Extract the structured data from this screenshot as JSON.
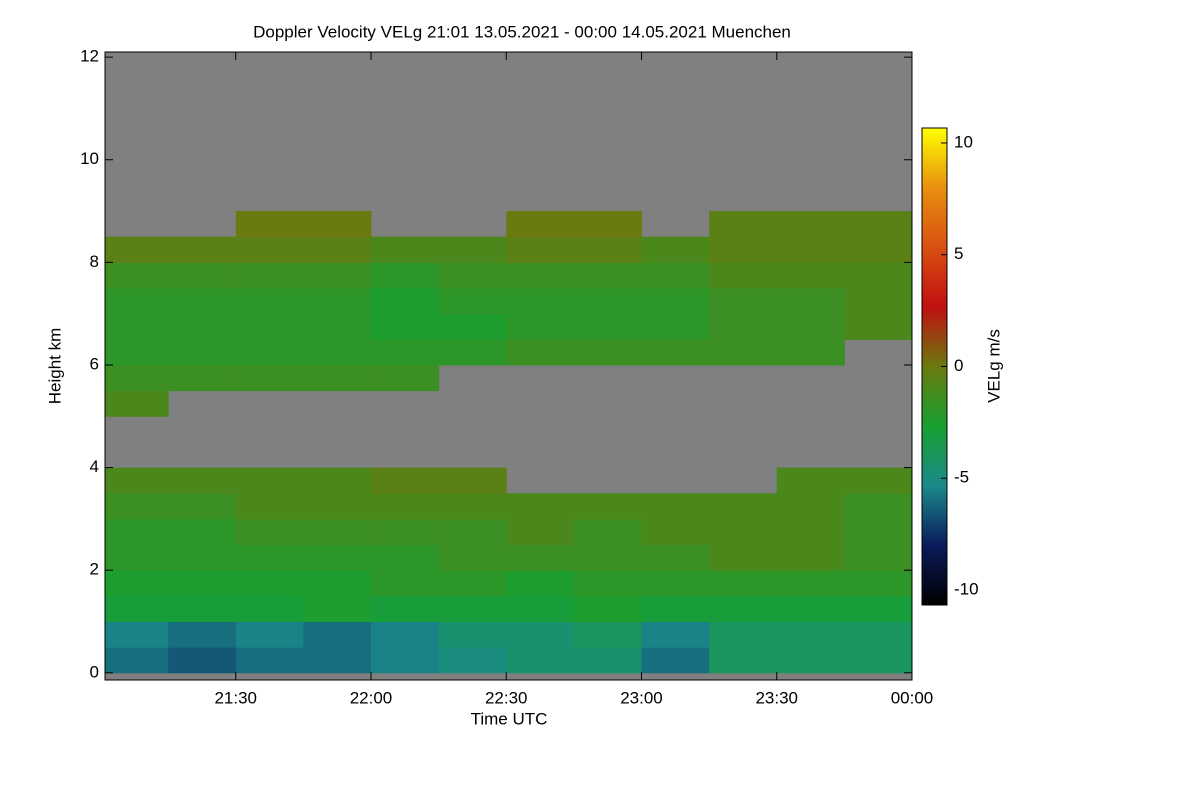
{
  "chart_data": {
    "type": "heatmap",
    "title": "Doppler Velocity VELg   21:01 13.05.2021 - 00:00 14.05.2021 Muenchen",
    "x_label": "Time UTC",
    "y_label": "Height km",
    "colorbar_label": "VELg m/s",
    "x": [
      21.0,
      21.25,
      21.5,
      21.75,
      22.0,
      22.25,
      22.5,
      22.75,
      23.0,
      23.25,
      23.5,
      23.75
    ],
    "y": [
      0,
      0.5,
      1,
      1.5,
      2,
      2.5,
      3,
      3.5,
      4,
      4.5,
      5,
      5.5,
      6,
      6.5,
      7,
      7.5,
      8,
      8.5,
      9,
      9.5,
      10,
      10.5,
      11,
      11.5
    ],
    "values": [
      [
        -6,
        -6.5,
        -6,
        -6,
        -5.5,
        -5,
        -4.5,
        -4.5,
        -6,
        -4,
        -4,
        -4
      ],
      [
        -5.5,
        -6,
        -5.5,
        -6,
        -5.5,
        -4.5,
        -4.5,
        -4,
        -5.5,
        -4,
        -4,
        -4
      ],
      [
        -3,
        -3,
        -3,
        -2.5,
        -3,
        -3,
        -3,
        -2.5,
        -3,
        -3,
        -3,
        -3
      ],
      [
        -2.5,
        -2.5,
        -2.5,
        -2.5,
        -2,
        -2,
        -2.5,
        -2,
        -2,
        -2,
        -2,
        -2
      ],
      [
        -2,
        -2,
        -2,
        -2,
        -2,
        -1.5,
        -1.5,
        -1.5,
        -1.5,
        -1,
        -1,
        -1.5
      ],
      [
        -2,
        -2,
        -1.5,
        -1.5,
        -1.5,
        -1.5,
        -1,
        -1.5,
        -1,
        -1,
        -1,
        -1.5
      ],
      [
        -1.5,
        -1.5,
        -1,
        -1,
        -1,
        -1,
        -1,
        -1,
        -1,
        -1,
        -1,
        -1.5
      ],
      [
        -1,
        -1,
        -1,
        -1,
        -0.5,
        -0.5,
        null,
        null,
        null,
        null,
        -1,
        -1
      ],
      [
        null,
        null,
        null,
        null,
        null,
        null,
        null,
        null,
        null,
        null,
        null,
        null
      ],
      [
        null,
        null,
        null,
        null,
        null,
        null,
        null,
        null,
        null,
        null,
        null,
        null
      ],
      [
        -1,
        null,
        null,
        null,
        null,
        null,
        null,
        null,
        null,
        null,
        null,
        null
      ],
      [
        -1.5,
        -1.5,
        -1.5,
        -1.5,
        -1.5,
        null,
        null,
        null,
        null,
        null,
        null,
        null
      ],
      [
        -2,
        -2,
        -2,
        -2,
        -2,
        -2,
        -1.5,
        -1.5,
        -1.5,
        -1.5,
        -1.5,
        null
      ],
      [
        -2,
        -2,
        -2,
        -2,
        -2.5,
        -2.5,
        -2,
        -2,
        -2,
        -1.5,
        -1.5,
        -1
      ],
      [
        -2,
        -2,
        -2,
        -2,
        -2.5,
        -2,
        -2,
        -2,
        -2,
        -1.5,
        -1.5,
        -1
      ],
      [
        -1.5,
        -1.5,
        -1.5,
        -1.5,
        -2,
        -1.5,
        -1.5,
        -1.5,
        -1.5,
        -1,
        -1,
        -1
      ],
      [
        -0.5,
        -0.5,
        -0.5,
        -0.5,
        -1,
        -1,
        -0.5,
        -0.5,
        -1,
        -0.5,
        -0.5,
        -0.5
      ],
      [
        null,
        null,
        0,
        0,
        null,
        null,
        0,
        0,
        null,
        -0.5,
        -0.5,
        -0.5
      ],
      [
        null,
        null,
        null,
        null,
        null,
        null,
        null,
        null,
        null,
        null,
        null,
        null
      ],
      [
        null,
        null,
        null,
        null,
        null,
        null,
        null,
        null,
        null,
        null,
        null,
        null
      ],
      [
        null,
        null,
        null,
        null,
        null,
        null,
        null,
        null,
        null,
        null,
        null,
        null
      ],
      [
        null,
        null,
        null,
        null,
        null,
        null,
        null,
        null,
        null,
        null,
        null,
        null
      ],
      [
        null,
        null,
        null,
        null,
        null,
        null,
        null,
        null,
        null,
        null,
        null,
        null
      ],
      [
        null,
        null,
        null,
        null,
        null,
        null,
        null,
        null,
        null,
        null,
        null,
        null
      ]
    ],
    "cell_width": 0.25,
    "cell_height": 0.5,
    "xlim": [
      21.0167,
      24.0
    ],
    "xticks": [
      {
        "value": 21.5,
        "label": "21:30"
      },
      {
        "value": 22.0,
        "label": "22:00"
      },
      {
        "value": 22.5,
        "label": "22:30"
      },
      {
        "value": 23.0,
        "label": "23:00"
      },
      {
        "value": 23.5,
        "label": "23:30"
      },
      {
        "value": 24.0,
        "label": "00:00"
      }
    ],
    "ylim": [
      -0.14,
      12.1
    ],
    "yticks": [
      0,
      2,
      4,
      6,
      8,
      10,
      12
    ],
    "zlim": [
      -10.67,
      10.67
    ],
    "zticks": [
      -10,
      -5,
      0,
      5,
      10
    ],
    "colorscale": [
      "#000000",
      "#0a1a5a",
      "#1a8a8a",
      "#18a030",
      "#6a7a10",
      "#c01010",
      "#d85010",
      "#e89010",
      "#ffff00"
    ],
    "missing_color": "#808080"
  }
}
